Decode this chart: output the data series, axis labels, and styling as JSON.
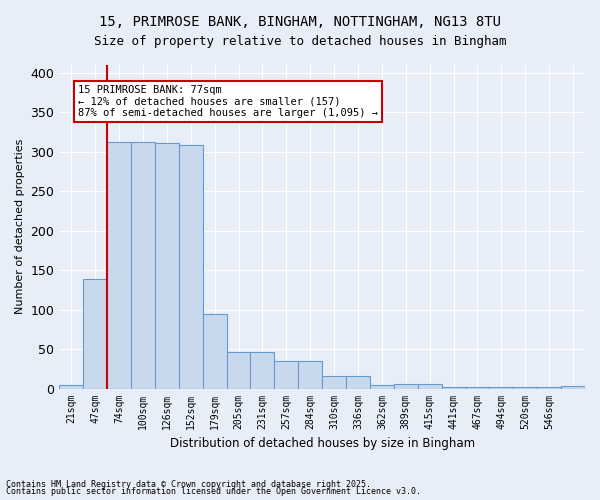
{
  "title_line1": "15, PRIMROSE BANK, BINGHAM, NOTTINGHAM, NG13 8TU",
  "title_line2": "Size of property relative to detached houses in Bingham",
  "xlabel": "Distribution of detached houses by size in Bingham",
  "ylabel": "Number of detached properties",
  "bar_values": [
    4,
    139,
    312,
    312,
    311,
    308,
    94,
    46,
    46,
    35,
    35,
    16,
    16,
    5,
    6,
    6,
    2,
    2,
    2,
    2,
    2,
    3
  ],
  "bin_labels": [
    "21sqm",
    "47sqm",
    "74sqm",
    "100sqm",
    "126sqm",
    "152sqm",
    "179sqm",
    "205sqm",
    "231sqm",
    "257sqm",
    "284sqm",
    "310sqm",
    "336sqm",
    "362sqm",
    "389sqm",
    "415sqm",
    "441sqm",
    "467sqm",
    "494sqm",
    "520sqm",
    "546sqm",
    ""
  ],
  "bar_color": "#c8d9ee",
  "bar_edge_color": "#6699cc",
  "bg_color": "#e8eef8",
  "grid_color": "#ffffff",
  "annotation_text": "15 PRIMROSE BANK: 77sqm\n← 12% of detached houses are smaller (157)\n87% of semi-detached houses are larger (1,095) →",
  "annotation_box_color": "#ffffff",
  "annotation_box_edge": "#cc0000",
  "vline_x": 1.5,
  "vline_color": "#cc0000",
  "ylim": [
    0,
    410
  ],
  "yticks": [
    0,
    50,
    100,
    150,
    200,
    250,
    300,
    350,
    400
  ],
  "footnote_line1": "Contains HM Land Registry data © Crown copyright and database right 2025.",
  "footnote_line2": "Contains public sector information licensed under the Open Government Licence v3.0."
}
